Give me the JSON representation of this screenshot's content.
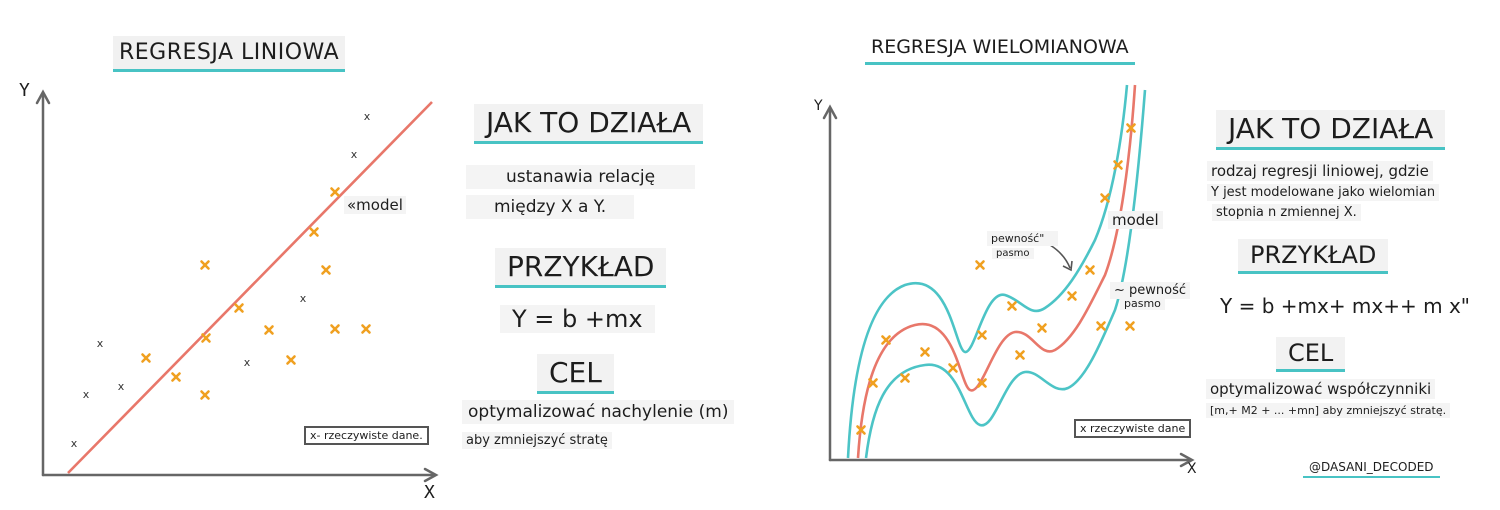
{
  "linear": {
    "title": "REGRESJA LINIOWA",
    "y_axis": "Y",
    "x_axis": "X",
    "model_label": "«model",
    "how_heading": "JAK TO DZIAŁA",
    "how_line1": "ustanawia relację",
    "how_line2": "między X a Y.",
    "example_heading": "PRZYKŁAD",
    "equation": "Y = b +mx",
    "goal_heading": "CEL",
    "goal_line1": "optymalizować nachylenie (m)",
    "goal_line2": "aby zmniejszyć stratę",
    "legend": "x- rzeczywiste dane.",
    "raw_marker": "x"
  },
  "polynomial": {
    "title": "REGRESJA WIELOMIANOWA",
    "y_axis": "Y",
    "x_axis": "X",
    "model_label": "model",
    "band_top_line1": "pewność\"",
    "band_top_line2": "pasmo",
    "band_right_line1": "~ pewność",
    "band_right_line2": "pasmo",
    "how_heading": "JAK TO DZIAŁA",
    "how_line1": "rodzaj regresji liniowej, gdzie",
    "how_line2": "Y jest modelowane jako wielomian",
    "how_line3": "stopnia n zmiennej X.",
    "example_heading": "PRZYKŁAD",
    "equation": "Y = b +mx+ mx++ m x\"",
    "goal_heading": "CEL",
    "goal_line1": "optymalizować współczynniki",
    "goal_line2": "[m,+ M2 + ... +mn] aby zmniejszyć stratę.",
    "legend": "x rzeczywiste dane",
    "signature": "@DASANI_DECODED"
  },
  "colors": {
    "accent": "#48c3c4",
    "model_line": "#e8776a",
    "data_cross": "#f0a020"
  }
}
